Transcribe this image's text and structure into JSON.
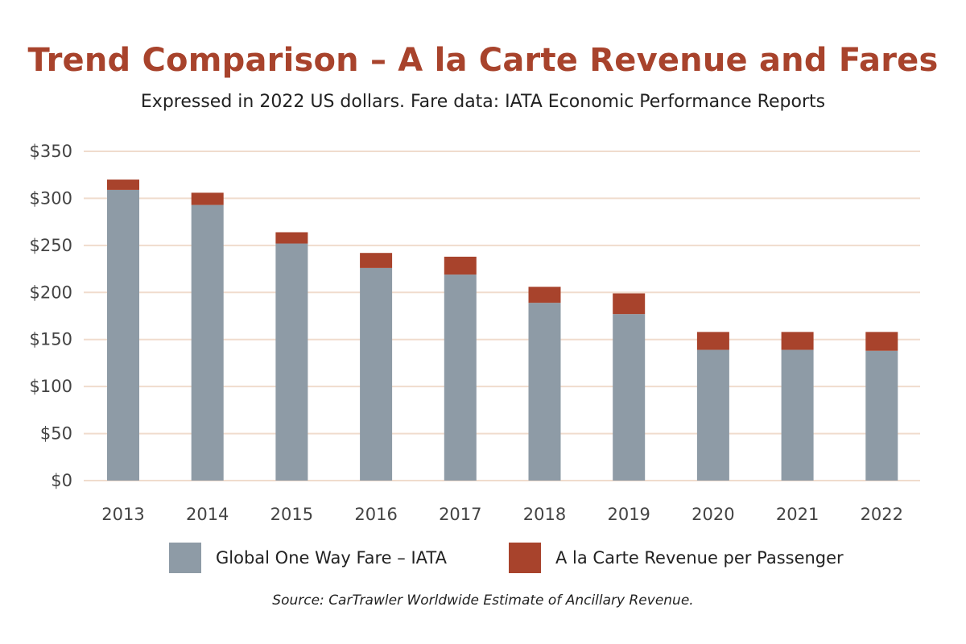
{
  "chart_data": {
    "type": "bar",
    "stacked": true,
    "title": "Trend Comparison – A la Carte Revenue and Fares",
    "subtitle": "Expressed in 2022 US dollars. Fare data: IATA Economic Performance Reports",
    "source": "Source: CarTrawler Worldwide Estimate of Ancillary Revenue.",
    "categories": [
      "2013",
      "2014",
      "2015",
      "2016",
      "2017",
      "2018",
      "2019",
      "2020",
      "2021",
      "2022"
    ],
    "series": [
      {
        "name": "Global One Way Fare – IATA",
        "color": "#8e9ba6",
        "values": [
          309,
          293,
          252,
          226,
          219,
          189,
          177,
          139,
          139,
          138
        ]
      },
      {
        "name": "A la Carte Revenue per Passenger",
        "color": "#a8432c",
        "values": [
          11,
          13,
          12,
          16,
          19,
          17,
          22,
          19,
          19,
          20
        ]
      }
    ],
    "ylim": [
      0,
      350
    ],
    "yticks": [
      0,
      50,
      100,
      150,
      200,
      250,
      300,
      350
    ],
    "ytick_labels": [
      "$0",
      "$50",
      "$100",
      "$150",
      "$200",
      "$250",
      "$300",
      "$350"
    ],
    "xlabel": "",
    "ylabel": "",
    "grid": true,
    "gridline_color": "#f0dccd",
    "legend_position": "bottom"
  }
}
